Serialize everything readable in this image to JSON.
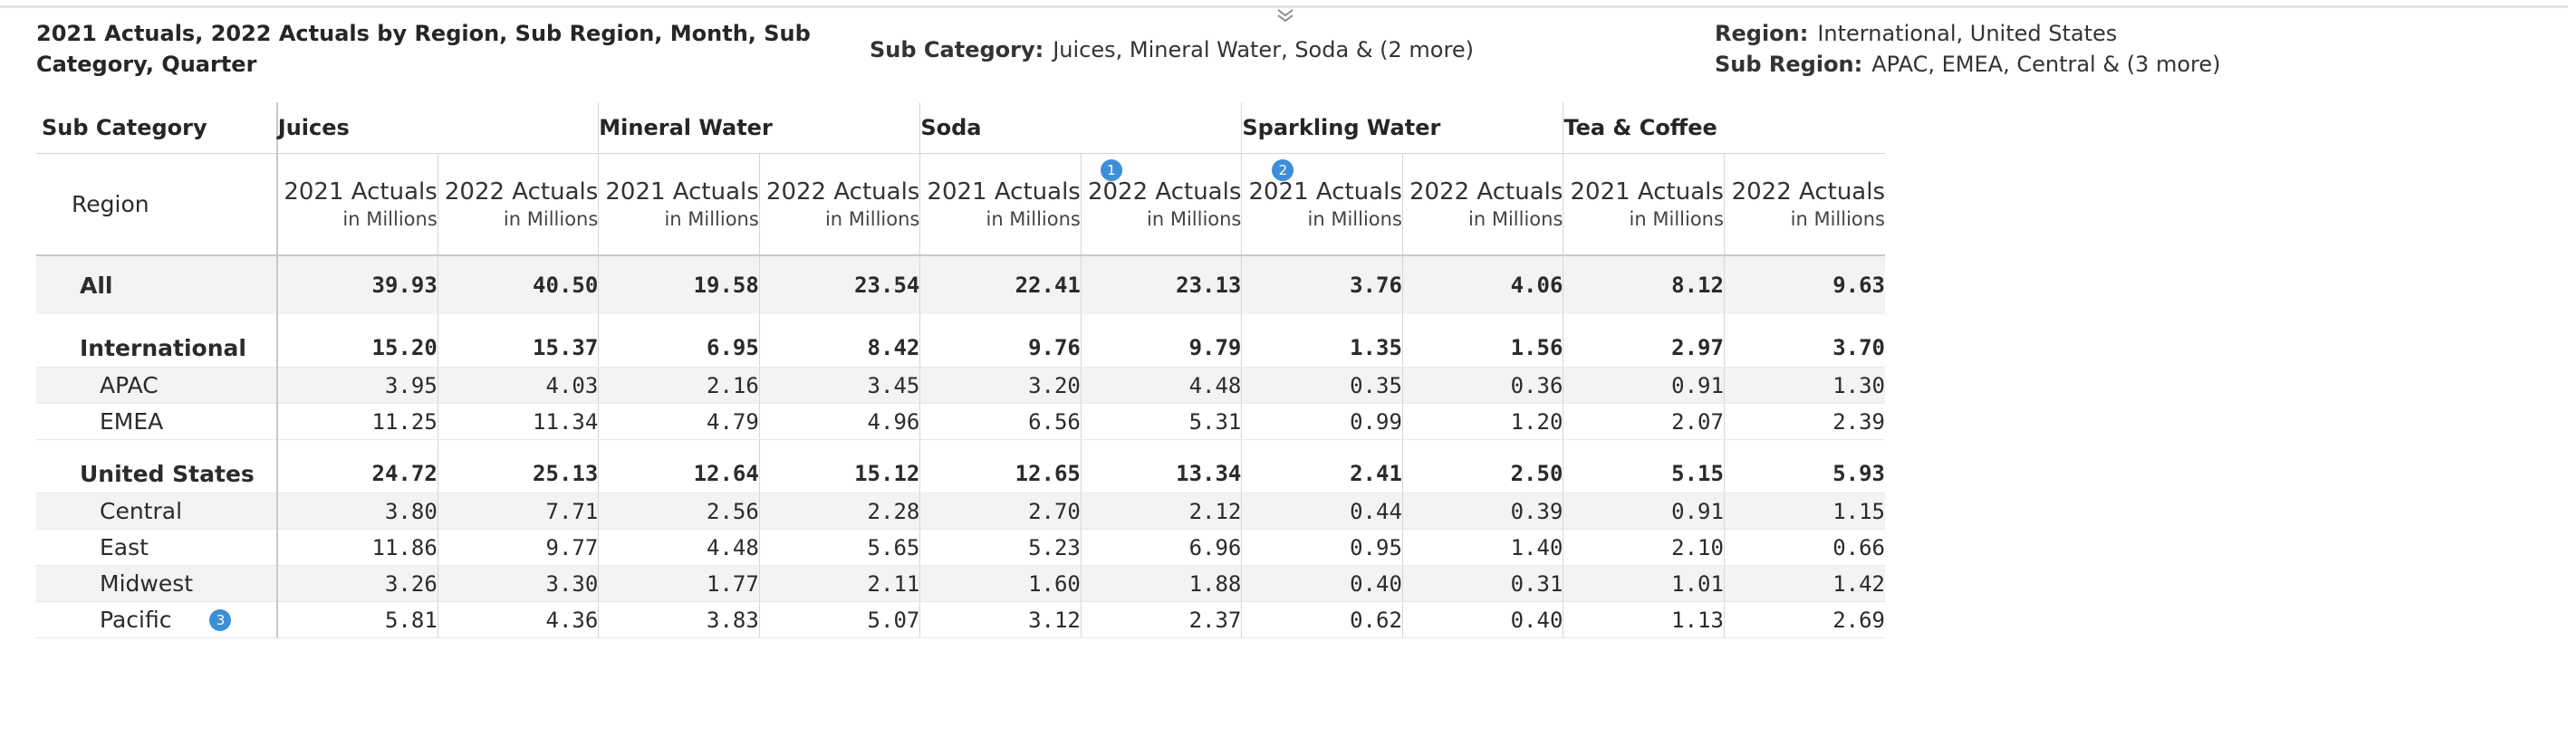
{
  "header": {
    "title": "2021 Actuals, 2022 Actuals by Region, Sub Region, Month, Sub Category, Quarter",
    "chevron_icon": "chevron-down-icon",
    "filters": {
      "sub_category": {
        "label": "Sub Category:",
        "value": "Juices, Mineral Water, Soda & (2 more)"
      },
      "region": {
        "label": "Region:",
        "value": "International, United States"
      },
      "sub_region": {
        "label": "Sub Region:",
        "value": "APAC, EMEA, Central & (3 more)"
      }
    }
  },
  "table": {
    "corner_top": "Sub Category",
    "corner_bottom": "Region",
    "categories": [
      "Juices",
      "Mineral Water",
      "Soda",
      "Sparkling Water",
      "Tea & Coffee"
    ],
    "measures": [
      "2021 Actuals",
      "2022 Actuals"
    ],
    "unit": "in Millions",
    "badges": {
      "soda_2022": "1",
      "sparkling_2021": "2",
      "pacific": "3"
    },
    "rows": [
      {
        "label": "All",
        "type": "total",
        "values": [
          "39.93",
          "40.50",
          "19.58",
          "23.54",
          "22.41",
          "23.13",
          "3.76",
          "4.06",
          "8.12",
          "9.63"
        ]
      },
      {
        "label": "International",
        "type": "group",
        "values": [
          "15.20",
          "15.37",
          "6.95",
          "8.42",
          "9.76",
          "9.79",
          "1.35",
          "1.56",
          "2.97",
          "3.70"
        ]
      },
      {
        "label": "APAC",
        "type": "sub",
        "values": [
          "3.95",
          "4.03",
          "2.16",
          "3.45",
          "3.20",
          "4.48",
          "0.35",
          "0.36",
          "0.91",
          "1.30"
        ]
      },
      {
        "label": "EMEA",
        "type": "sub",
        "values": [
          "11.25",
          "11.34",
          "4.79",
          "4.96",
          "6.56",
          "5.31",
          "0.99",
          "1.20",
          "2.07",
          "2.39"
        ]
      },
      {
        "label": "United States",
        "type": "group",
        "values": [
          "24.72",
          "25.13",
          "12.64",
          "15.12",
          "12.65",
          "13.34",
          "2.41",
          "2.50",
          "5.15",
          "5.93"
        ]
      },
      {
        "label": "Central",
        "type": "sub",
        "values": [
          "3.80",
          "7.71",
          "2.56",
          "2.28",
          "2.70",
          "2.12",
          "0.44",
          "0.39",
          "0.91",
          "1.15"
        ]
      },
      {
        "label": "East",
        "type": "sub",
        "values": [
          "11.86",
          "9.77",
          "4.48",
          "5.65",
          "5.23",
          "6.96",
          "0.95",
          "1.40",
          "2.10",
          "0.66"
        ]
      },
      {
        "label": "Midwest",
        "type": "sub",
        "values": [
          "3.26",
          "3.30",
          "1.77",
          "2.11",
          "1.60",
          "1.88",
          "0.40",
          "0.31",
          "1.01",
          "1.42"
        ]
      },
      {
        "label": "Pacific",
        "type": "sub",
        "values": [
          "5.81",
          "4.36",
          "3.83",
          "5.07",
          "3.12",
          "2.37",
          "0.62",
          "0.40",
          "1.13",
          "2.69"
        ]
      }
    ]
  }
}
